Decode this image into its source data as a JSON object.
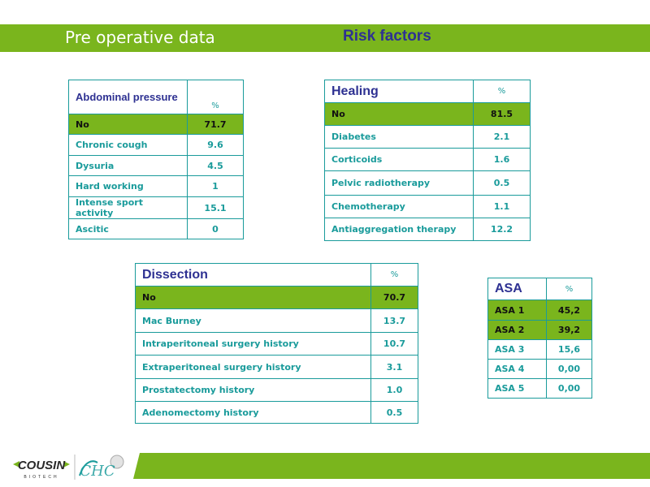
{
  "header": {
    "title": "Pre operative data",
    "subtitle": "Risk factors"
  },
  "tables": {
    "abdominal": {
      "title": "Abdominal pressure",
      "unit": "%",
      "rows": [
        {
          "label": "No",
          "value": "71.7"
        },
        {
          "label": "Chronic cough",
          "value": "9.6"
        },
        {
          "label": "Dysuria",
          "value": "4.5"
        },
        {
          "label": "Hard working",
          "value": "1"
        },
        {
          "label": "Intense sport activity",
          "value": "15.1"
        },
        {
          "label": "Ascitic",
          "value": "0"
        }
      ]
    },
    "healing": {
      "title": "Healing",
      "unit": "%",
      "rows": [
        {
          "label": "No",
          "value": "81.5"
        },
        {
          "label": "Diabetes",
          "value": "2.1"
        },
        {
          "label": "Corticoids",
          "value": "1.6"
        },
        {
          "label": "Pelvic radiotherapy",
          "value": "0.5"
        },
        {
          "label": "Chemotherapy",
          "value": "1.1"
        },
        {
          "label": "Antiaggregation therapy",
          "value": "12.2"
        }
      ]
    },
    "dissection": {
      "title": "Dissection",
      "unit": "%",
      "rows": [
        {
          "label": "No",
          "value": "70.7"
        },
        {
          "label": "Mac Burney",
          "value": "13.7"
        },
        {
          "label": "Intraperitoneal surgery history",
          "value": "10.7"
        },
        {
          "label": "Extraperitoneal surgery history",
          "value": "3.1"
        },
        {
          "label": "Prostatectomy history",
          "value": "1.0"
        },
        {
          "label": "Adenomectomy history",
          "value": "0.5"
        }
      ]
    },
    "asa": {
      "title": "ASA",
      "unit": "%",
      "rows": [
        {
          "label": "ASA 1",
          "value": "45,2"
        },
        {
          "label": "ASA 2",
          "value": "39,2"
        },
        {
          "label": "ASA 3",
          "value": "15,6"
        },
        {
          "label": "ASA 4",
          "value": "0,00"
        },
        {
          "label": "ASA 5",
          "value": "0,00"
        }
      ]
    }
  },
  "footer": {
    "logo_text": "COUSIN",
    "logo_subtext": "BIOTECH",
    "logo_mark": "CHC"
  },
  "colors": {
    "accent": "#7ab51d",
    "table_text": "#1a9b9b",
    "title_text": "#2e3192"
  }
}
